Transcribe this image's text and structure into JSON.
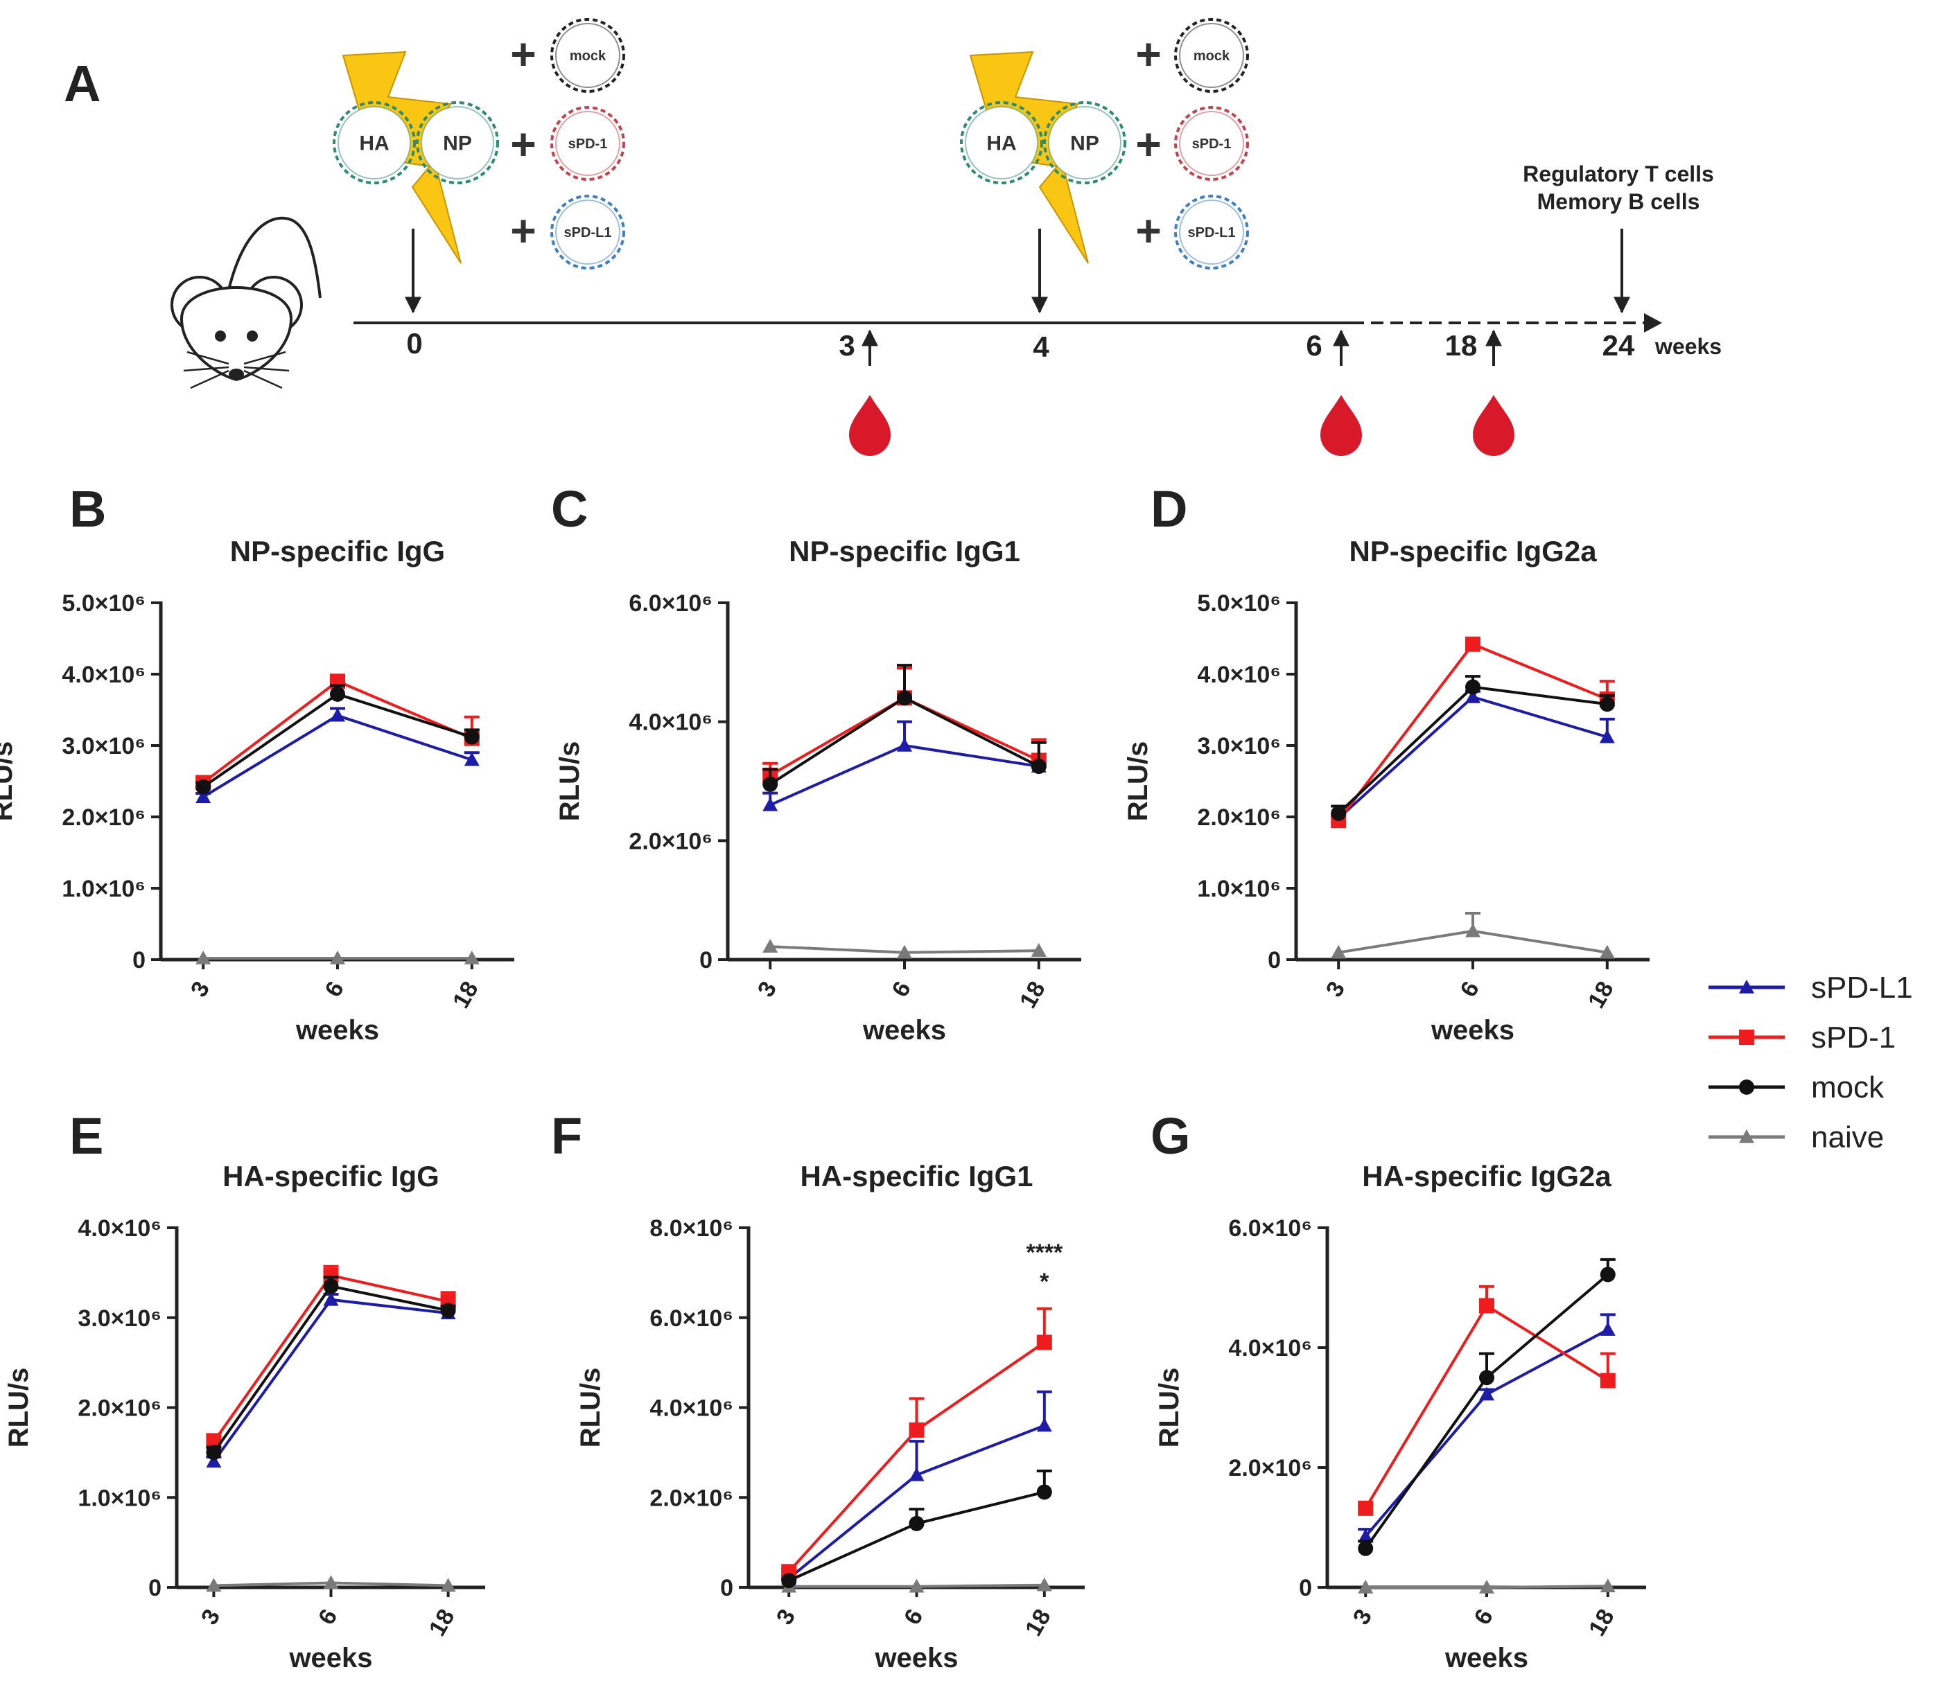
{
  "colors": {
    "sPD-L1": "#1c1ca8",
    "sPD-1": "#ee1c1c",
    "mock": "#111111",
    "naive": "#7a7a7a",
    "bolt": "#f8c613",
    "ha_np_ring": "#2e8b6e",
    "spd1_ring": "#c8414a",
    "spdl1_ring": "#3d7ec7",
    "mock_ring": "#222222",
    "blood": "#d7192a"
  },
  "timeline": {
    "panel_label": "A",
    "plasmid_labels": {
      "ha": "HA",
      "np": "NP",
      "mock": "mock",
      "spd1": "sPD-1",
      "spdl1": "sPD-L1",
      "plus": "+"
    },
    "ticks": [
      "0",
      "3",
      "4",
      "6",
      "18",
      "24"
    ],
    "weeks_label": "weeks",
    "endpoint_line1": "Regulatory T cells",
    "endpoint_line2": "Memory B cells",
    "icons": [
      "mouse-icon",
      "electroporation-bolt-icon",
      "plasmid-icon",
      "blood-drop-icon",
      "arrow-icon"
    ]
  },
  "legend": {
    "items": [
      {
        "key": "sPD-L1",
        "label": "sPD-L1",
        "marker": "triangle"
      },
      {
        "key": "sPD-1",
        "label": "sPD-1",
        "marker": "square"
      },
      {
        "key": "mock",
        "label": "mock",
        "marker": "circle"
      },
      {
        "key": "naive",
        "label": "naive",
        "marker": "triangle"
      }
    ]
  },
  "chart_data": [
    {
      "panel": "B",
      "type": "line",
      "title": "NP-specific IgG",
      "xlabel": "weeks",
      "ylabel": "RLU/s",
      "categories": [
        "3",
        "6",
        "18"
      ],
      "ylim": [
        0,
        5000000.0
      ],
      "yticks": [
        0,
        1000000.0,
        2000000.0,
        3000000.0,
        4000000.0,
        5000000.0
      ],
      "ytick_labels": [
        "0",
        "1.0×10⁶",
        "2.0×10⁶",
        "3.0×10⁶",
        "4.0×10⁶",
        "5.0×10⁶"
      ],
      "series": [
        {
          "name": "sPD-L1",
          "values": [
            2280000.0,
            3420000.0,
            2800000.0
          ],
          "err": [
            50000.0,
            100000.0,
            100000.0
          ]
        },
        {
          "name": "sPD-1",
          "values": [
            2480000.0,
            3900000.0,
            3100000.0
          ],
          "err": [
            50000.0,
            80000.0,
            300000.0
          ]
        },
        {
          "name": "mock",
          "values": [
            2420000.0,
            3720000.0,
            3120000.0
          ],
          "err": [
            60000.0,
            120000.0,
            100000.0
          ]
        },
        {
          "name": "naive",
          "values": [
            20000.0,
            20000.0,
            20000.0
          ],
          "err": [
            0.0,
            0.0,
            0.0
          ]
        }
      ]
    },
    {
      "panel": "C",
      "type": "line",
      "title": "NP-specific IgG1",
      "xlabel": "weeks",
      "ylabel": "RLU/s",
      "categories": [
        "3",
        "6",
        "18"
      ],
      "ylim": [
        0,
        6000000.0
      ],
      "yticks": [
        0,
        2000000.0,
        4000000.0,
        6000000.0
      ],
      "ytick_labels": [
        "0",
        "2.0×10⁶",
        "4.0×10⁶",
        "6.0×10⁶"
      ],
      "series": [
        {
          "name": "sPD-L1",
          "values": [
            2600000.0,
            3600000.0,
            3250000.0
          ],
          "err": [
            200000.0,
            400000.0,
            50000.0
          ]
        },
        {
          "name": "sPD-1",
          "values": [
            3100000.0,
            4400000.0,
            3350000.0
          ],
          "err": [
            200000.0,
            500000.0,
            350000.0
          ]
        },
        {
          "name": "mock",
          "values": [
            2950000.0,
            4400000.0,
            3250000.0
          ],
          "err": [
            250000.0,
            550000.0,
            400000.0
          ]
        },
        {
          "name": "naive",
          "values": [
            220000.0,
            120000.0,
            150000.0
          ],
          "err": [
            0.0,
            0.0,
            0.0
          ]
        }
      ]
    },
    {
      "panel": "D",
      "type": "line",
      "title": "NP-specific IgG2a",
      "xlabel": "weeks",
      "ylabel": "RLU/s",
      "categories": [
        "3",
        "6",
        "18"
      ],
      "ylim": [
        0,
        5000000.0
      ],
      "yticks": [
        0,
        1000000.0,
        2000000.0,
        3000000.0,
        4000000.0,
        5000000.0
      ],
      "ytick_labels": [
        "0",
        "1.0×10⁶",
        "2.0×10⁶",
        "3.0×10⁶",
        "4.0×10⁶",
        "5.0×10⁶"
      ],
      "series": [
        {
          "name": "sPD-L1",
          "values": [
            1980000.0,
            3680000.0,
            3120000.0
          ],
          "err": [
            50000.0,
            80000.0,
            250000.0
          ]
        },
        {
          "name": "sPD-1",
          "values": [
            1950000.0,
            4420000.0,
            3650000.0
          ],
          "err": [
            50000.0,
            50000.0,
            250000.0
          ]
        },
        {
          "name": "mock",
          "values": [
            2050000.0,
            3820000.0,
            3580000.0
          ],
          "err": [
            100000.0,
            150000.0,
            120000.0
          ]
        },
        {
          "name": "naive",
          "values": [
            100000.0,
            400000.0,
            100000.0
          ],
          "err": [
            0.0,
            250000.0,
            0.0
          ]
        }
      ]
    },
    {
      "panel": "E",
      "type": "line",
      "title": "HA-specific IgG",
      "xlabel": "weeks",
      "ylabel": "RLU/s",
      "categories": [
        "3",
        "6",
        "18"
      ],
      "ylim": [
        0,
        4000000.0
      ],
      "yticks": [
        0,
        1000000.0,
        2000000.0,
        3000000.0,
        4000000.0
      ],
      "ytick_labels": [
        "0",
        "1.0×10⁶",
        "2.0×10⁶",
        "3.0×10⁶",
        "4.0×10⁶"
      ],
      "series": [
        {
          "name": "sPD-L1",
          "values": [
            1400000.0,
            3200000.0,
            3050000.0
          ],
          "err": [
            50000.0,
            60000.0,
            60000.0
          ]
        },
        {
          "name": "sPD-1",
          "values": [
            1620000.0,
            3470000.0,
            3180000.0
          ],
          "err": [
            80000.0,
            100000.0,
            100000.0
          ]
        },
        {
          "name": "mock",
          "values": [
            1500000.0,
            3350000.0,
            3080000.0
          ],
          "err": [
            60000.0,
            100000.0,
            50000.0
          ]
        },
        {
          "name": "naive",
          "values": [
            20000.0,
            50000.0,
            20000.0
          ],
          "err": [
            0.0,
            0.0,
            0.0
          ]
        }
      ]
    },
    {
      "panel": "F",
      "type": "line",
      "title": "HA-specific IgG1",
      "xlabel": "weeks",
      "ylabel": "RLU/s",
      "categories": [
        "3",
        "6",
        "18"
      ],
      "ylim": [
        0,
        8000000.0
      ],
      "yticks": [
        0,
        2000000.0,
        4000000.0,
        6000000.0,
        8000000.0
      ],
      "ytick_labels": [
        "0",
        "2.0×10⁶",
        "4.0×10⁶",
        "6.0×10⁶",
        "8.0×10⁶"
      ],
      "annotations": [
        "****",
        "*"
      ],
      "series": [
        {
          "name": "sPD-L1",
          "values": [
            200000.0,
            2500000.0,
            3600000.0
          ],
          "err": [
            50000.0,
            750000.0,
            750000.0
          ]
        },
        {
          "name": "sPD-1",
          "values": [
            350000.0,
            3500000.0,
            5450000.0
          ],
          "err": [
            50000.0,
            700000.0,
            750000.0
          ]
        },
        {
          "name": "mock",
          "values": [
            150000.0,
            1420000.0,
            2120000.0
          ],
          "err": [
            30000.0,
            320000.0,
            470000.0
          ]
        },
        {
          "name": "naive",
          "values": [
            20000.0,
            20000.0,
            50000.0
          ],
          "err": [
            0.0,
            0.0,
            0.0
          ]
        }
      ]
    },
    {
      "panel": "G",
      "type": "line",
      "title": "HA-specific IgG2a",
      "xlabel": "weeks",
      "ylabel": "RLU/s",
      "categories": [
        "3",
        "6",
        "18"
      ],
      "ylim": [
        0,
        6000000.0
      ],
      "yticks": [
        0,
        2000000.0,
        4000000.0,
        6000000.0
      ],
      "ytick_labels": [
        "0",
        "2.0×10⁶",
        "4.0×10⁶",
        "6.0×10⁶"
      ],
      "series": [
        {
          "name": "sPD-L1",
          "values": [
            850000.0,
            3220000.0,
            4300000.0
          ],
          "err": [
            120000.0,
            80000.0,
            250000.0
          ]
        },
        {
          "name": "sPD-1",
          "values": [
            1320000.0,
            4700000.0,
            3450000.0
          ],
          "err": [
            50000.0,
            320000.0,
            450000.0
          ]
        },
        {
          "name": "mock",
          "values": [
            650000.0,
            3500000.0,
            5220000.0
          ],
          "err": [
            120000.0,
            400000.0,
            250000.0
          ]
        },
        {
          "name": "naive",
          "values": [
            0.0,
            0.0,
            20000.0
          ],
          "err": [
            0.0,
            0.0,
            0.0
          ]
        }
      ]
    }
  ]
}
